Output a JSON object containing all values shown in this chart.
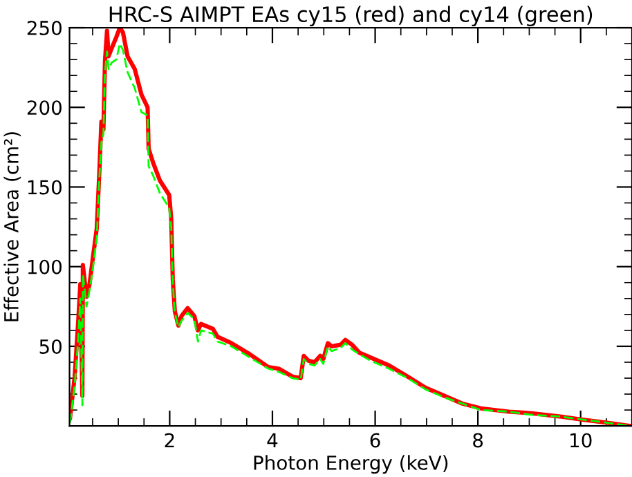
{
  "chart_data": {
    "type": "line",
    "title": "HRC-S AIMPT EAs cy15 (red) and cy14 (green)",
    "xlabel": "Photon Energy (keV)",
    "ylabel": "Effective Area (cm²)",
    "x": [
      0.06,
      0.15,
      0.22,
      0.26,
      0.3,
      0.31,
      0.38,
      0.44,
      0.51,
      0.58,
      0.63,
      0.67,
      0.71,
      0.74,
      0.78,
      0.81,
      0.87,
      0.96,
      1.03,
      1.09,
      1.18,
      1.32,
      1.45,
      1.57,
      1.59,
      1.68,
      1.81,
      1.99,
      2.03,
      2.06,
      2.1,
      2.17,
      2.23,
      2.35,
      2.48,
      2.55,
      2.61,
      2.84,
      2.93,
      3.2,
      3.56,
      3.92,
      4.12,
      4.39,
      4.55,
      4.61,
      4.7,
      4.82,
      4.93,
      4.99,
      5.08,
      5.15,
      5.33,
      5.42,
      5.55,
      5.69,
      5.91,
      6.27,
      6.63,
      6.98,
      7.34,
      7.7,
      8.06,
      8.6,
      9.04,
      9.58,
      10.03,
      10.52,
      10.97
    ],
    "series": [
      {
        "color": "#ff0000",
        "line_style": "solid",
        "values": [
          5,
          31,
          66,
          89,
          19,
          101,
          81,
          89,
          107,
          124,
          159,
          191,
          186,
          229,
          248,
          232,
          237,
          244,
          250,
          247,
          232,
          224,
          208,
          200,
          174,
          165,
          154,
          145,
          130,
          92,
          72,
          63,
          69,
          74,
          69,
          60,
          64,
          61,
          56,
          52,
          45,
          37,
          36,
          31,
          30,
          44,
          41,
          40,
          44,
          42,
          52,
          50,
          51,
          54,
          51,
          46,
          43,
          38,
          31,
          24,
          19,
          14,
          11,
          9,
          8,
          6,
          4,
          2,
          0
        ]
      },
      {
        "color": "#00ff00",
        "line_style": "dashed",
        "values": [
          2,
          25,
          55,
          80,
          13,
          95,
          75,
          85,
          100,
          118,
          155,
          178,
          183,
          222,
          235,
          224,
          228,
          230,
          240,
          236,
          222,
          212,
          197,
          195,
          163,
          157,
          146,
          137,
          125,
          90,
          71,
          62,
          66,
          71,
          67,
          53,
          60,
          58,
          53,
          50,
          43,
          36,
          34,
          30,
          29,
          42,
          39,
          38,
          42,
          39,
          50,
          47,
          49,
          52,
          48,
          45,
          41,
          36,
          30,
          23,
          18,
          14,
          10,
          9,
          7,
          6,
          4,
          2,
          0
        ]
      }
    ],
    "xlim": [
      0.05,
      11
    ],
    "ylim": [
      0,
      250
    ],
    "xticks": [
      2,
      4,
      6,
      8,
      10
    ],
    "yticks": [
      50,
      100,
      150,
      200,
      250
    ],
    "grid": false,
    "legend": false
  }
}
